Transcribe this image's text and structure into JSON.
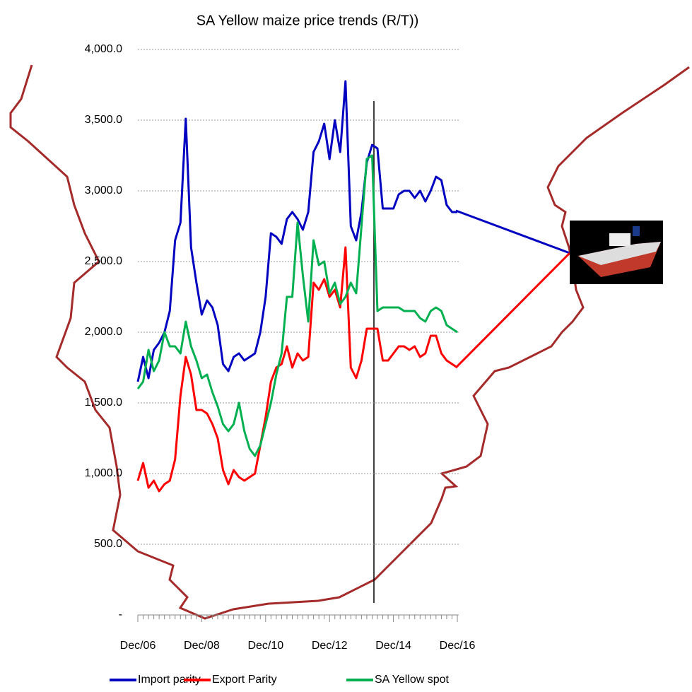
{
  "chart_data": {
    "type": "line",
    "title": "SA  Yellow maize price trends (R/T))",
    "categories": [
      "Dec/06",
      null,
      null,
      null,
      null,
      null,
      null,
      null,
      null,
      null,
      null,
      null,
      "Dec/08",
      null,
      null,
      null,
      null,
      null,
      null,
      null,
      null,
      null,
      null,
      null,
      "Dec/10",
      null,
      null,
      null,
      null,
      null,
      null,
      null,
      null,
      null,
      null,
      null,
      "Dec/12",
      null,
      null,
      null,
      null,
      null,
      null,
      null,
      null,
      null,
      null,
      null,
      "Dec/14",
      null,
      null,
      null,
      null,
      null,
      null,
      null,
      null,
      null,
      null,
      null,
      "Dec/16"
    ],
    "series": [
      {
        "name": "Import  parity",
        "color": "#0000c0",
        "values": [
          1650,
          1825,
          1675,
          1875,
          1925,
          2000,
          2150,
          2650,
          2775,
          3510,
          2600,
          2350,
          2125,
          2225,
          2175,
          2050,
          1775,
          1725,
          1825,
          1850,
          1800,
          1825,
          1850,
          2000,
          2250,
          2700,
          2675,
          2625,
          2800,
          2850,
          2800,
          2725,
          2850,
          3275,
          3350,
          3475,
          3225,
          3500,
          3275,
          3775,
          2750,
          2650,
          2850,
          3200,
          3325,
          3300,
          2875,
          2875,
          2875,
          2975,
          3000,
          3000,
          2950,
          3000,
          2925,
          3000,
          3100,
          3075,
          2900,
          2850,
          2850
        ]
      },
      {
        "name": "Export Parity",
        "color": "#ff0000",
        "values": [
          950,
          1075,
          900,
          950,
          875,
          925,
          950,
          1100,
          1550,
          1825,
          1700,
          1450,
          1450,
          1425,
          1350,
          1250,
          1025,
          925,
          1025,
          975,
          950,
          975,
          1000,
          1200,
          1400,
          1650,
          1750,
          1775,
          1900,
          1750,
          1850,
          1800,
          1825,
          2350,
          2300,
          2375,
          2250,
          2300,
          2175,
          2600,
          1750,
          1675,
          1800,
          2025,
          2025,
          2025,
          1800,
          1800,
          1850,
          1900,
          1900,
          1875,
          1900,
          1825,
          1850,
          1975,
          1975,
          1850,
          1800,
          1775,
          1750
        ]
      },
      {
        "name": "SA Yellow spot",
        "color": "#00b050",
        "values": [
          1600,
          1650,
          1875,
          1725,
          1800,
          2000,
          1900,
          1900,
          1850,
          2075,
          1900,
          1800,
          1675,
          1700,
          1575,
          1475,
          1350,
          1300,
          1350,
          1500,
          1300,
          1175,
          1125,
          1200,
          1350,
          1500,
          1700,
          1850,
          2250,
          2250,
          2775,
          2400,
          2075,
          2650,
          2475,
          2500,
          2275,
          2350,
          2200,
          2250,
          2350,
          2275,
          2750,
          3225,
          3250,
          2150,
          2175,
          2175,
          2175,
          2175,
          2150,
          2150,
          2150,
          2100,
          2075,
          2150,
          2175,
          2150,
          2050,
          2025,
          2000
        ]
      }
    ],
    "ylim": [
      0,
      4000
    ],
    "yticks": [
      {
        "value": 0,
        "label": "-"
      },
      {
        "value": 500,
        "label": "500.0"
      },
      {
        "value": 1000,
        "label": "1,000.0"
      },
      {
        "value": 1500,
        "label": "1,500.0"
      },
      {
        "value": 2000,
        "label": "2,000.0"
      },
      {
        "value": 2500,
        "label": "2,500.0"
      },
      {
        "value": 3000,
        "label": "3,000.0"
      },
      {
        "value": 3500,
        "label": "3,500.0"
      },
      {
        "value": 4000,
        "label": "4,000.0"
      }
    ],
    "grid": true,
    "legend": "bottom"
  }
}
